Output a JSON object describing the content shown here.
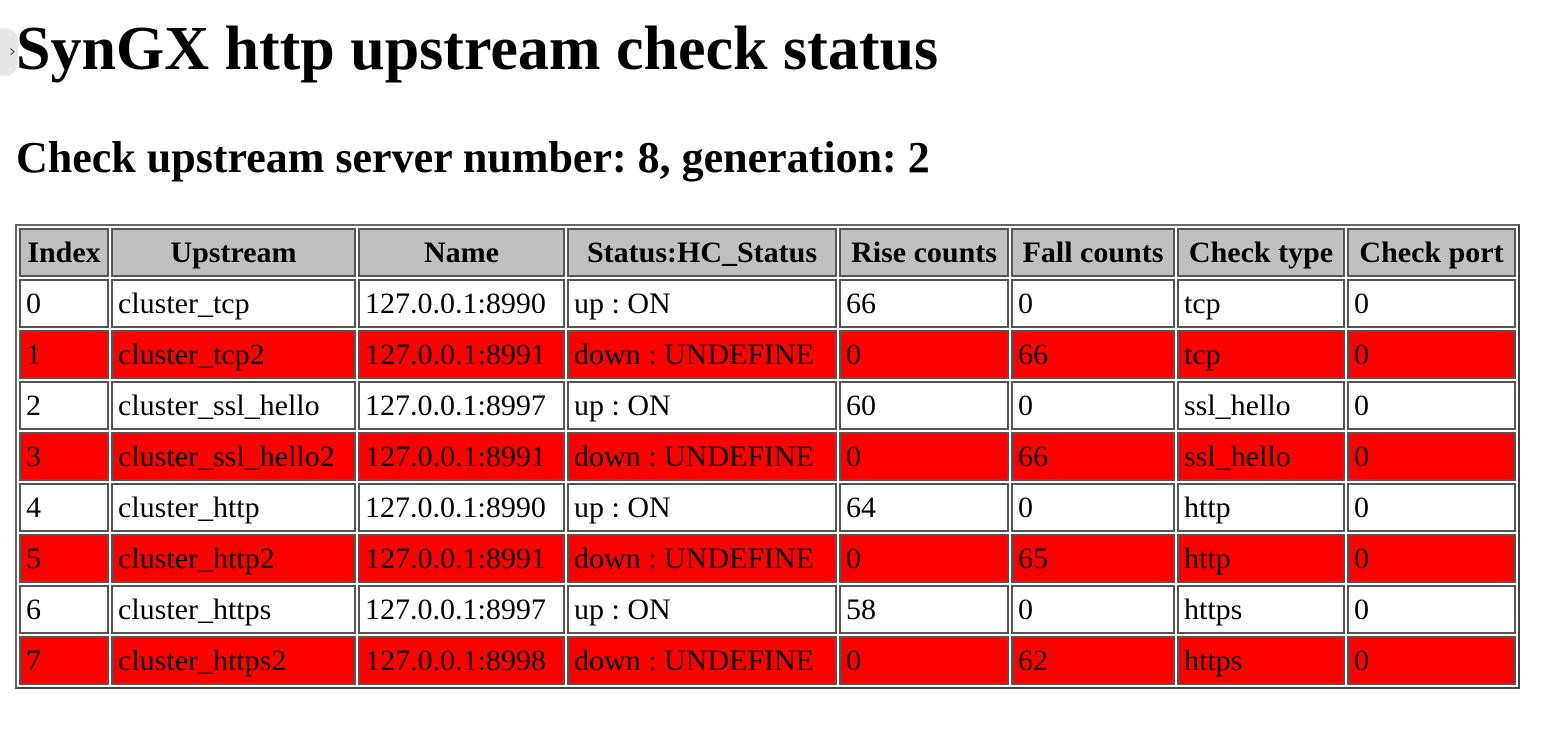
{
  "page": {
    "title": "SynGX http upstream check status",
    "subtitle": "Check upstream server number: 8, generation: 2",
    "handle_icon": "chevron-right-icon"
  },
  "colors": {
    "down_row": "#ff0000",
    "header": "#c0c0c0"
  },
  "table": {
    "headers": [
      "Index",
      "Upstream",
      "Name",
      "Status:HC_Status",
      "Rise counts",
      "Fall counts",
      "Check type",
      "Check port"
    ],
    "rows": [
      {
        "state": "up",
        "cells": [
          "0",
          "cluster_tcp",
          "127.0.0.1:8990",
          "up : ON",
          "66",
          "0",
          "tcp",
          "0"
        ]
      },
      {
        "state": "down",
        "cells": [
          "1",
          "cluster_tcp2",
          "127.0.0.1:8991",
          "down : UNDEFINE",
          "0",
          "66",
          "tcp",
          "0"
        ]
      },
      {
        "state": "up",
        "cells": [
          "2",
          "cluster_ssl_hello",
          "127.0.0.1:8997",
          "up : ON",
          "60",
          "0",
          "ssl_hello",
          "0"
        ]
      },
      {
        "state": "down",
        "cells": [
          "3",
          "cluster_ssl_hello2",
          "127.0.0.1:8991",
          "down : UNDEFINE",
          "0",
          "66",
          "ssl_hello",
          "0"
        ]
      },
      {
        "state": "up",
        "cells": [
          "4",
          "cluster_http",
          "127.0.0.1:8990",
          "up : ON",
          "64",
          "0",
          "http",
          "0"
        ]
      },
      {
        "state": "down",
        "cells": [
          "5",
          "cluster_http2",
          "127.0.0.1:8991",
          "down : UNDEFINE",
          "0",
          "65",
          "http",
          "0"
        ]
      },
      {
        "state": "up",
        "cells": [
          "6",
          "cluster_https",
          "127.0.0.1:8997",
          "up : ON",
          "58",
          "0",
          "https",
          "0"
        ]
      },
      {
        "state": "down",
        "cells": [
          "7",
          "cluster_https2",
          "127.0.0.1:8998",
          "down : UNDEFINE",
          "0",
          "62",
          "https",
          "0"
        ]
      }
    ]
  }
}
